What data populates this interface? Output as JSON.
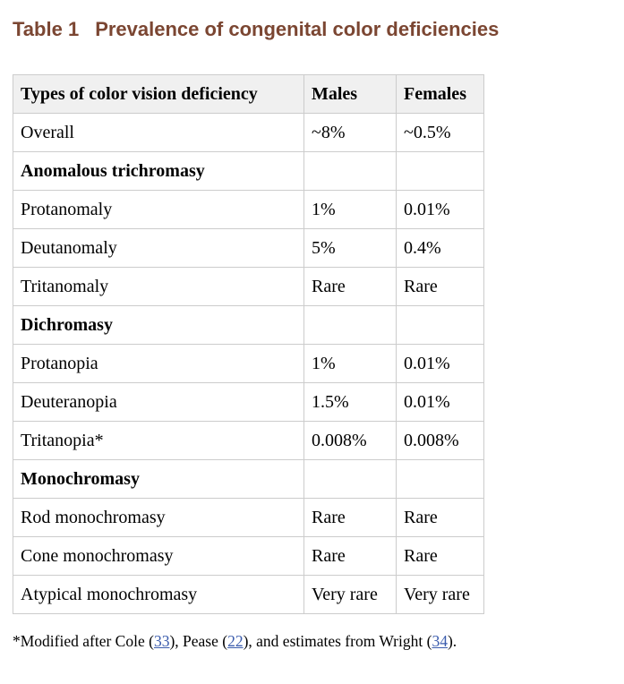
{
  "title": {
    "label": "Table 1",
    "text": "Prevalence of congenital color deficiencies"
  },
  "colors": {
    "page-bg": "#ffffff",
    "title-color": "#7b4632",
    "header-bg": "#f0f0f0",
    "border-color": "#cccccc",
    "link-color": "#3b5cad"
  },
  "table": {
    "header": [
      "Types of color vision deficiency",
      "Males",
      "Females"
    ],
    "rows": [
      {
        "type": "data",
        "cells": [
          "Overall",
          "~8%",
          "~0.5%"
        ]
      },
      {
        "type": "section",
        "cells": [
          "Anomalous trichromasy",
          "",
          ""
        ]
      },
      {
        "type": "data",
        "cells": [
          "Protanomaly",
          "1%",
          "0.01%"
        ]
      },
      {
        "type": "data",
        "cells": [
          "Deutanomaly",
          "5%",
          "0.4%"
        ]
      },
      {
        "type": "data",
        "cells": [
          "Tritanomaly",
          "Rare",
          "Rare"
        ]
      },
      {
        "type": "section",
        "cells": [
          "Dichromasy",
          "",
          ""
        ]
      },
      {
        "type": "data",
        "cells": [
          "Protanopia",
          "1%",
          "0.01%"
        ]
      },
      {
        "type": "data",
        "cells": [
          "Deuteranopia",
          "1.5%",
          "0.01%"
        ]
      },
      {
        "type": "data",
        "cells": [
          "Tritanopia*",
          "0.008%",
          "0.008%"
        ]
      },
      {
        "type": "section",
        "cells": [
          "Monochromasy",
          "",
          ""
        ]
      },
      {
        "type": "data",
        "cells": [
          "Rod monochromasy",
          "Rare",
          "Rare"
        ]
      },
      {
        "type": "data",
        "cells": [
          "Cone monochromasy",
          "Rare",
          "Rare"
        ]
      },
      {
        "type": "data",
        "cells": [
          "Atypical monochromasy",
          "Very rare",
          "Very rare"
        ]
      }
    ]
  },
  "footnote": {
    "segments": [
      {
        "text": "*Modified after Cole ("
      },
      {
        "text": "33",
        "link": true
      },
      {
        "text": "), Pease ("
      },
      {
        "text": "22",
        "link": true
      },
      {
        "text": "), and estimates from Wright ("
      },
      {
        "text": "34",
        "link": true
      },
      {
        "text": ")."
      }
    ]
  }
}
